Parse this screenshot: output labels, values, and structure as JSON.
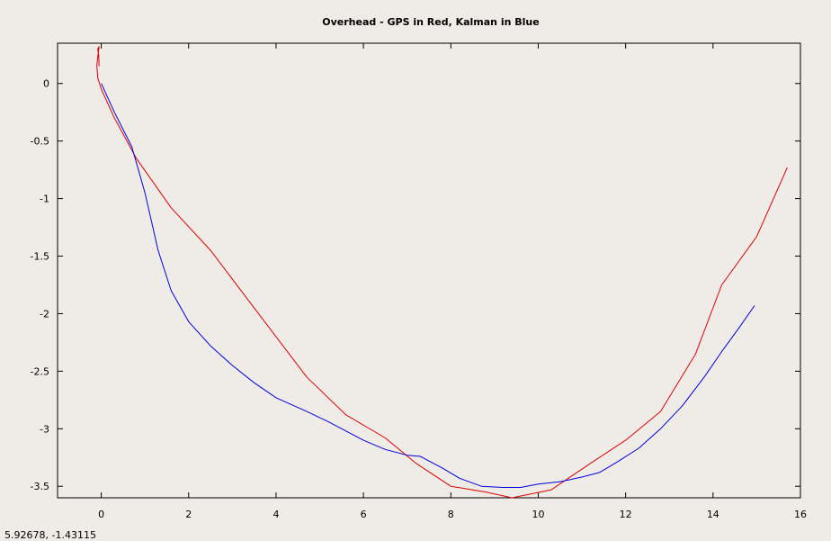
{
  "status_readout": "5.92678, -1.43115",
  "chart_data": {
    "type": "line",
    "title": "Overhead - GPS in Red, Kalman in Blue",
    "xlabel": "",
    "ylabel": "",
    "xlim": [
      -1,
      16
    ],
    "ylim": [
      -3.6,
      0.35
    ],
    "xticks": [
      0,
      2,
      4,
      6,
      8,
      10,
      12,
      14,
      16
    ],
    "yticks": [
      0,
      -0.5,
      -1,
      -1.5,
      -2,
      -2.5,
      -3,
      -3.5
    ],
    "xtick_labels": [
      "0",
      "2",
      "4",
      "6",
      "8",
      "10",
      "12",
      "14",
      "16"
    ],
    "ytick_labels": [
      "0",
      "-0.5",
      "-1",
      "-1.5",
      "-2",
      "-2.5",
      "-3",
      "-3.5"
    ],
    "grid": false,
    "series": [
      {
        "color": "#dd0000",
        "x": [
          -0.05,
          -0.06,
          -0.08,
          -0.05,
          -0.09,
          -0.1,
          -0.08,
          0.0,
          0.3,
          0.8,
          1.6,
          2.5,
          3.5,
          4.7,
          5.6,
          6.5,
          7.2,
          8.0,
          8.8,
          9.4,
          10.3,
          11.2,
          12.0,
          12.8,
          13.6,
          14.2,
          15.0,
          15.7
        ],
        "y": [
          0.15,
          0.25,
          0.3,
          0.32,
          0.2,
          0.15,
          0.05,
          -0.05,
          -0.3,
          -0.65,
          -1.08,
          -1.45,
          -1.95,
          -2.55,
          -2.88,
          -3.08,
          -3.3,
          -3.5,
          -3.55,
          -3.6,
          -3.53,
          -3.3,
          -3.1,
          -2.85,
          -2.35,
          -1.75,
          -1.33,
          -0.73
        ]
      },
      {
        "color": "#0000dd",
        "x": [
          0.0,
          0.3,
          0.7,
          1.0,
          1.3,
          1.6,
          2.0,
          2.5,
          3.0,
          3.5,
          4.0,
          4.7,
          5.2,
          5.6,
          6.0,
          6.5,
          7.0,
          7.3,
          7.8,
          8.2,
          8.7,
          9.2,
          9.6,
          10.0,
          10.5,
          11.0,
          11.4,
          11.8,
          12.3,
          12.8,
          13.3,
          13.8,
          14.2,
          14.6,
          14.95
        ],
        "y": [
          0.0,
          -0.25,
          -0.55,
          -0.95,
          -1.45,
          -1.8,
          -2.07,
          -2.28,
          -2.45,
          -2.6,
          -2.73,
          -2.85,
          -2.94,
          -3.02,
          -3.1,
          -3.18,
          -3.23,
          -3.24,
          -3.34,
          -3.43,
          -3.5,
          -3.51,
          -3.51,
          -3.48,
          -3.46,
          -3.42,
          -3.38,
          -3.29,
          -3.17,
          -3.0,
          -2.8,
          -2.55,
          -2.33,
          -2.12,
          -1.93
        ]
      }
    ]
  }
}
